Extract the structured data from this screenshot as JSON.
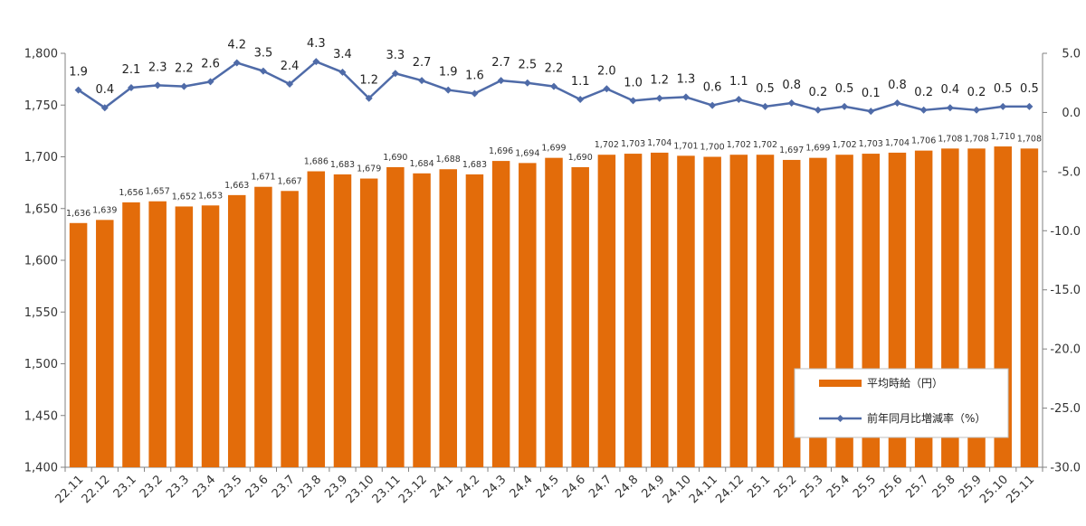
{
  "chart_data": {
    "type": "bar+line",
    "categories": [
      "22.11",
      "22.12",
      "23.1",
      "23.2",
      "23.3",
      "23.4",
      "23.5",
      "23.6",
      "23.7",
      "23.8",
      "23.9",
      "23.10",
      "23.11",
      "23.12",
      "24.1",
      "24.2",
      "24.3",
      "24.4",
      "24.5",
      "24.6",
      "24.7",
      "24.8",
      "24.9",
      "24.10",
      "24.11",
      "24.12",
      "25.1",
      "25.2",
      "25.3",
      "25.4",
      "25.5",
      "25.6",
      "25.7",
      "25.8",
      "25.9",
      "25.10",
      "25.11"
    ],
    "series": [
      {
        "name": "平均時給（円）",
        "type": "bar",
        "axis": "left",
        "color": "#E36C0A",
        "values": [
          1636,
          1639,
          1656,
          1657,
          1652,
          1653,
          1663,
          1671,
          1667,
          1686,
          1683,
          1679,
          1690,
          1684,
          1688,
          1683,
          1696,
          1694,
          1699,
          1690,
          1702,
          1703,
          1704,
          1701,
          1700,
          1702,
          1702,
          1697,
          1699,
          1702,
          1703,
          1704,
          1706,
          1708,
          1708,
          1710,
          1708
        ],
        "labels": [
          "1,636",
          "1,639",
          "1,656",
          "1,657",
          "1,652",
          "1,653",
          "1,663",
          "1,671",
          "1,667",
          "1,686",
          "1,683",
          "1,679",
          "1,690",
          "1,684",
          "1,688",
          "1,683",
          "1,696",
          "1,694",
          "1,699",
          "1,690",
          "1,702",
          "1,703",
          "1,704",
          "1,701",
          "1,700",
          "1,702",
          "1,702",
          "1,697",
          "1,699",
          "1,702",
          "1,703",
          "1,704",
          "1,706",
          "1,708",
          "1,708",
          "1,710",
          "1,708"
        ]
      },
      {
        "name": "前年同月比増減率（%）",
        "type": "line",
        "axis": "right",
        "color": "#4F6BA8",
        "values": [
          1.9,
          0.4,
          2.1,
          2.3,
          2.2,
          2.6,
          4.2,
          3.5,
          2.4,
          4.3,
          3.4,
          1.2,
          3.3,
          2.7,
          1.9,
          1.6,
          2.7,
          2.5,
          2.2,
          1.1,
          2.0,
          1.0,
          1.2,
          1.3,
          0.6,
          1.1,
          0.5,
          0.8,
          0.2,
          0.5,
          0.1,
          0.8,
          0.2,
          0.4,
          0.2,
          0.5,
          0.5
        ],
        "labels": [
          "1.9",
          "0.4",
          "2.1",
          "2.3",
          "2.2",
          "2.6",
          "4.2",
          "3.5",
          "2.4",
          "4.3",
          "3.4",
          "1.2",
          "3.3",
          "2.7",
          "1.9",
          "1.6",
          "2.7",
          "2.5",
          "2.2",
          "1.1",
          "2.0",
          "1.0",
          "1.2",
          "1.3",
          "0.6",
          "1.1",
          "0.5",
          "0.8",
          "0.2",
          "0.5",
          "0.1",
          "0.8",
          "0.2",
          "0.4",
          "0.2",
          "0.5",
          "0.5"
        ]
      }
    ],
    "y_left": {
      "min": 1400,
      "max": 1800,
      "ticks": [
        1400,
        1450,
        1500,
        1550,
        1600,
        1650,
        1700,
        1750,
        1800
      ],
      "tick_labels": [
        "1,400",
        "1,450",
        "1,500",
        "1,550",
        "1,600",
        "1,650",
        "1,700",
        "1,750",
        "1,800"
      ]
    },
    "y_right": {
      "min": -30,
      "max": 5,
      "ticks": [
        -30,
        -25,
        -20,
        -15,
        -10,
        -5,
        0,
        5
      ],
      "tick_labels": [
        "-30.0",
        "-25.0",
        "-20.0",
        "-15.0",
        "-10.0",
        "-5.0",
        "0.0",
        "5.0"
      ]
    },
    "grid": false,
    "legend_position": "bottom-right",
    "title": "",
    "xlabel": "",
    "ylabel": ""
  }
}
